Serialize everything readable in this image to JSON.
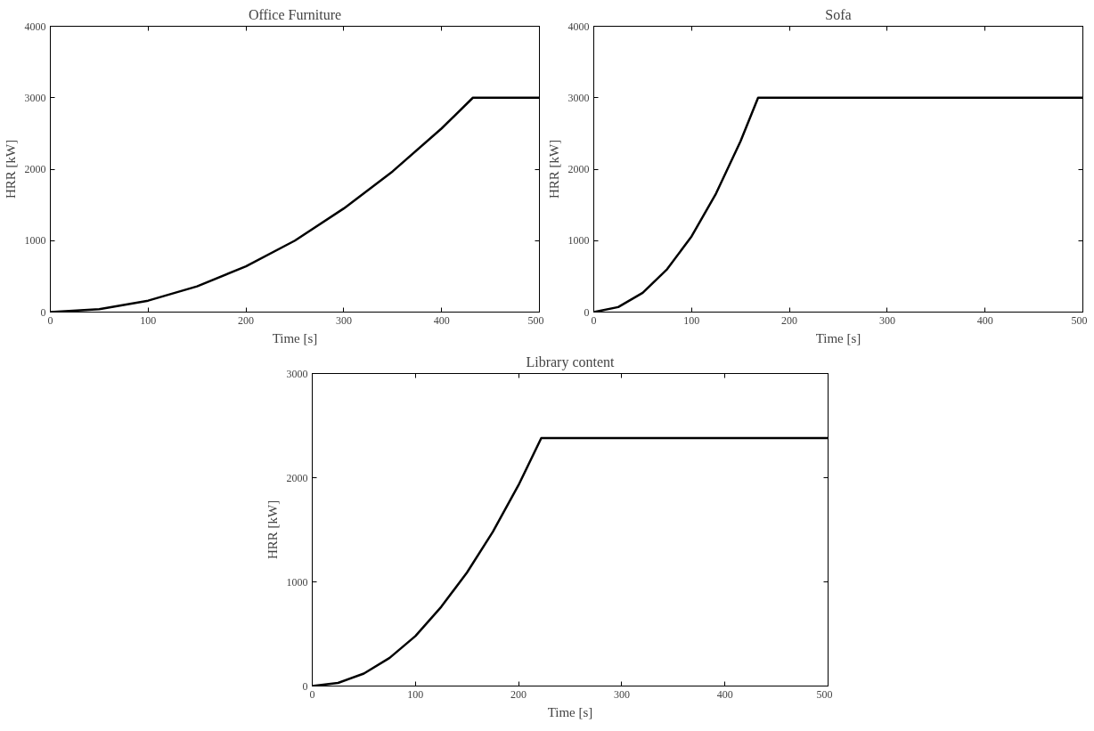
{
  "chart_data": [
    {
      "type": "line",
      "title": "Office Furniture",
      "xlabel": "Time [s]",
      "ylabel": "HRR [kW]",
      "xlim": [
        0,
        500
      ],
      "ylim": [
        0,
        4000
      ],
      "xticks": [
        0,
        100,
        200,
        300,
        400,
        500
      ],
      "yticks": [
        0,
        1000,
        2000,
        3000,
        4000
      ],
      "series": [
        {
          "color": "#000000",
          "x": [
            0,
            50,
            100,
            150,
            200,
            250,
            300,
            350,
            400,
            432,
            500
          ],
          "values": [
            0,
            40,
            160,
            360,
            640,
            1000,
            1450,
            1970,
            2570,
            3000,
            3000
          ]
        }
      ]
    },
    {
      "type": "line",
      "title": "Sofa",
      "xlabel": "Time [s]",
      "ylabel": "HRR [kW]",
      "xlim": [
        0,
        500
      ],
      "ylim": [
        0,
        4000
      ],
      "xticks": [
        0,
        100,
        200,
        300,
        400,
        500
      ],
      "yticks": [
        0,
        1000,
        2000,
        3000,
        4000
      ],
      "series": [
        {
          "color": "#000000",
          "x": [
            0,
            25,
            50,
            75,
            100,
            125,
            150,
            168,
            500
          ],
          "values": [
            0,
            70,
            270,
            600,
            1060,
            1660,
            2390,
            3000,
            3000
          ]
        }
      ]
    },
    {
      "type": "line",
      "title": "Library content",
      "xlabel": "Time [s]",
      "ylabel": "HRR [kW]",
      "xlim": [
        0,
        500
      ],
      "ylim": [
        0,
        3000
      ],
      "xticks": [
        0,
        100,
        200,
        300,
        400,
        500
      ],
      "yticks": [
        0,
        1000,
        2000,
        3000
      ],
      "series": [
        {
          "color": "#000000",
          "x": [
            0,
            25,
            50,
            75,
            100,
            125,
            150,
            175,
            200,
            222,
            500
          ],
          "values": [
            0,
            30,
            120,
            270,
            480,
            760,
            1090,
            1480,
            1930,
            2380,
            2380
          ]
        }
      ]
    }
  ]
}
